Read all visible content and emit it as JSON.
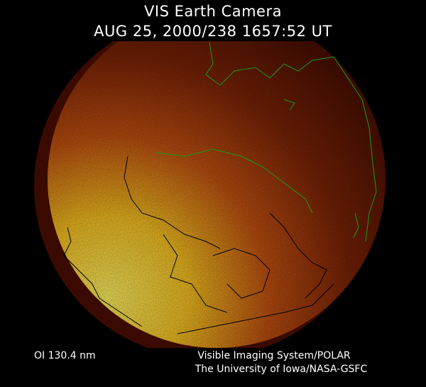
{
  "header": {
    "title": "VIS Earth Camera",
    "timestamp": "AUG 25, 2000/238 1657:52 UT"
  },
  "image": {
    "subject": "earth-far-ultraviolet-disk",
    "colors": {
      "dark": "#4a0f00",
      "mid": "#b8400a",
      "bright": "#ffe040",
      "coast_day": "#1a9a1a",
      "coast_night": "#000000"
    }
  },
  "footer": {
    "band": "OI  130.4 nm",
    "instrument": "Visible Imaging System/POLAR",
    "institution": "The University of Iowa/NASA-GSFC"
  }
}
